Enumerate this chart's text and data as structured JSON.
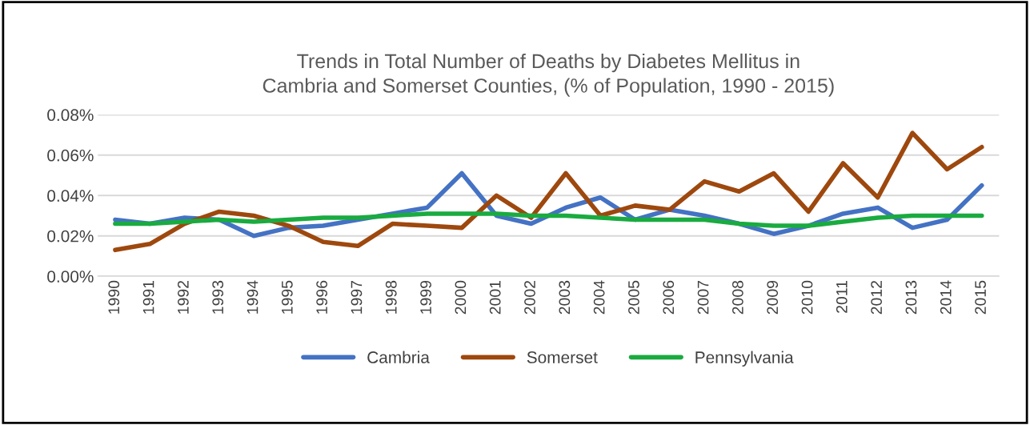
{
  "chart_data": {
    "type": "line",
    "title": "Trends in Total Number of Deaths by Diabetes Mellitus in\nCambria and Somerset Counties, (% of Population, 1990 - 2015)",
    "categories": [
      "1990",
      "1991",
      "1992",
      "1993",
      "1994",
      "1995",
      "1996",
      "1997",
      "1998",
      "1999",
      "2000",
      "2001",
      "2002",
      "2003",
      "2004",
      "2005",
      "2006",
      "2007",
      "2008",
      "2009",
      "2010",
      "2011",
      "2012",
      "2013",
      "2014",
      "2015"
    ],
    "series": [
      {
        "name": "Cambria",
        "color": "#4472c4",
        "values": [
          0.028,
          0.026,
          0.029,
          0.028,
          0.02,
          0.024,
          0.025,
          0.028,
          0.031,
          0.034,
          0.051,
          0.03,
          0.026,
          0.034,
          0.039,
          0.028,
          0.033,
          0.03,
          0.026,
          0.021,
          0.025,
          0.031,
          0.034,
          0.024,
          0.028,
          0.045
        ]
      },
      {
        "name": "Somerset",
        "color": "#9e480e",
        "values": [
          0.013,
          0.016,
          0.026,
          0.032,
          0.03,
          0.025,
          0.017,
          0.015,
          0.026,
          0.025,
          0.024,
          0.04,
          0.029,
          0.051,
          0.03,
          0.035,
          0.033,
          0.047,
          0.042,
          0.051,
          0.032,
          0.056,
          0.039,
          0.071,
          0.053,
          0.064
        ]
      },
      {
        "name": "Pennsylvania",
        "color": "#1aab40",
        "values": [
          0.026,
          0.026,
          0.027,
          0.028,
          0.027,
          0.028,
          0.029,
          0.029,
          0.03,
          0.031,
          0.031,
          0.031,
          0.03,
          0.03,
          0.029,
          0.028,
          0.028,
          0.028,
          0.026,
          0.025,
          0.025,
          0.027,
          0.029,
          0.03,
          0.03,
          0.03
        ]
      }
    ],
    "ylim": [
      0,
      0.08
    ],
    "yticks": [
      {
        "value": 0,
        "label": "0.00%"
      },
      {
        "value": 0.02,
        "label": "0.02%"
      },
      {
        "value": 0.04,
        "label": "0.04%"
      },
      {
        "value": 0.06,
        "label": "0.06%"
      },
      {
        "value": 0.08,
        "label": "0.08%"
      }
    ],
    "grid": "y",
    "legend": "bottom",
    "marker": "none",
    "line_style": "solid"
  }
}
